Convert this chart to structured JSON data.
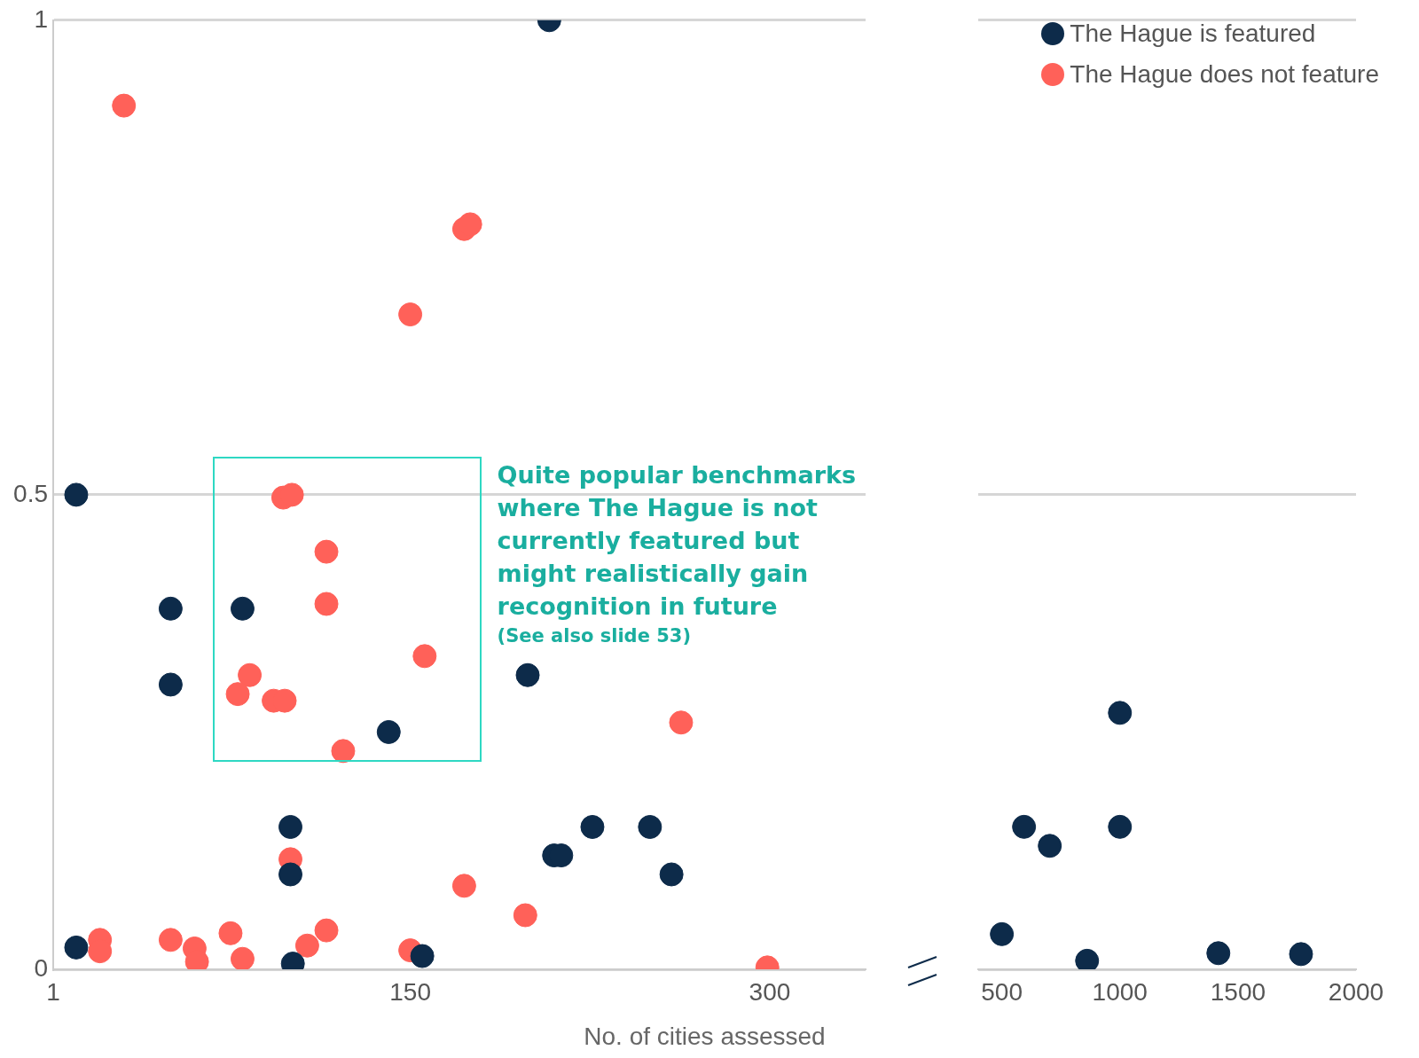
{
  "chart_data": [
    {
      "type": "scatter",
      "xlabel": "No. of cities assessed",
      "xlim": [
        1,
        340
      ],
      "xticks": [
        1,
        150,
        300
      ],
      "ylim": [
        0,
        1
      ],
      "yticks": [
        0,
        0.5,
        1
      ],
      "grid": "y",
      "marker": "circle",
      "annotations": [
        "Quite popular benchmarks where The Hague is not currently featured but might realistically gain recognition in future",
        "(See also slide 53)"
      ],
      "series": [
        {
          "color": "#0d2b4a",
          "x": [
            208,
            10.6,
            50,
            80,
            50,
            199,
            141,
            100,
            100,
            226,
            250,
            210,
            213,
            259,
            10.6,
            101,
            155
          ],
          "values": [
            1.0,
            0.5,
            0.38,
            0.38,
            0.3,
            0.31,
            0.25,
            0.15,
            0.1,
            0.15,
            0.15,
            0.12,
            0.12,
            0.1,
            0.023,
            0.006,
            0.014
          ]
        },
        {
          "color": "#ff6159",
          "x": [
            30.5,
            172.5,
            175,
            150,
            97,
            100.6,
            115,
            115,
            156,
            83,
            78,
            93,
            97.6,
            122,
            263,
            100,
            172.5,
            198,
            20.5,
            20.5,
            50,
            60,
            61,
            75,
            80,
            115,
            107,
            150,
            299
          ],
          "values": [
            0.91,
            0.78,
            0.785,
            0.69,
            0.497,
            0.5,
            0.44,
            0.385,
            0.33,
            0.31,
            0.29,
            0.283,
            0.283,
            0.23,
            0.26,
            0.116,
            0.088,
            0.057,
            0.031,
            0.019,
            0.031,
            0.022,
            0.008,
            0.038,
            0.011,
            0.041,
            0.025,
            0.02,
            0.002
          ]
        }
      ]
    },
    {
      "type": "scatter",
      "xlim": [
        400,
        2000
      ],
      "xticks": [
        500,
        1000,
        1500,
        2000
      ],
      "ylim": [
        0,
        1
      ],
      "yticks": [
        0,
        0.5,
        1
      ],
      "grid": "y",
      "legend": "top right",
      "marker": "circle",
      "tick_labels": "x",
      "series": [
        {
          "name": "The Hague is featured",
          "color": "#0d2b4a",
          "x": [
            500,
            594,
            703,
            861,
            1000,
            1000,
            1417,
            1767
          ],
          "values": [
            0.037,
            0.15,
            0.13,
            0.009,
            0.27,
            0.15,
            0.017,
            0.016
          ]
        },
        {
          "name": "The Hague does not feature",
          "color": "#ff6159"
        }
      ]
    }
  ]
}
